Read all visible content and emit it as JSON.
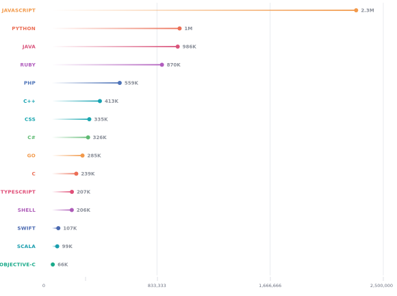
{
  "chart_data": {
    "type": "lollipop",
    "categories": [
      "JAVASCRIPT",
      "PYTHON",
      "JAVA",
      "RUBY",
      "PHP",
      "C++",
      "CSS",
      "C#",
      "GO",
      "C",
      "TYPESCRIPT",
      "SHELL",
      "SWIFT",
      "SCALA",
      "OBJECTIVE-C"
    ],
    "values": [
      2300000,
      1000000,
      986000,
      870000,
      559000,
      413000,
      335000,
      326000,
      285000,
      239000,
      207000,
      206000,
      107000,
      99000,
      66000
    ],
    "value_labels": [
      "2.3M",
      "1M",
      "986K",
      "870K",
      "559K",
      "413K",
      "335K",
      "326K",
      "285K",
      "239K",
      "207K",
      "206K",
      "107K",
      "99K",
      "66K"
    ],
    "colors": [
      "#f2994a",
      "#eb6e55",
      "#d9537b",
      "#b05cbd",
      "#4d73b8",
      "#17a3b2",
      "#1aa7b0",
      "#5fba73",
      "#f2994a",
      "#eb6e55",
      "#e04f78",
      "#ad5bb8",
      "#4a69b0",
      "#1a9eae",
      "#19aa8a"
    ],
    "xlim": [
      0,
      2500000
    ],
    "x_ticks": [
      0,
      833333,
      1666666,
      2500000
    ],
    "x_tick_labels": [
      "0",
      "833,333",
      "1,666,666",
      "2,500,000"
    ],
    "grid": true
  }
}
